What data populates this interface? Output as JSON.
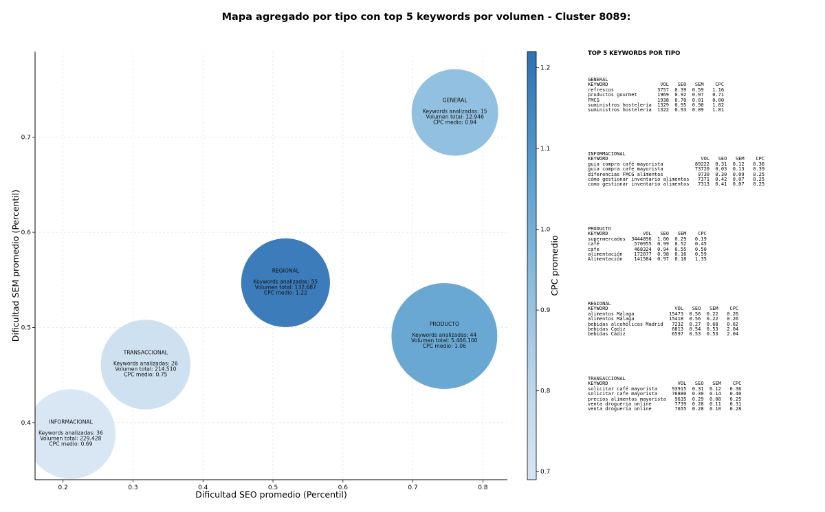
{
  "chart_data": {
    "type": "scatter",
    "title": "Mapa agregado por tipo con top 5 keywords por volumen - Cluster 8089:",
    "xlabel": "Dificultad SEO promedio (Percentil)",
    "ylabel": "Dificultad SEM promedio (Percentil)",
    "xlim": [
      0.16,
      0.835
    ],
    "ylim": [
      0.34,
      0.79
    ],
    "xticks": [
      0.2,
      0.3,
      0.4,
      0.5,
      0.6,
      0.7,
      0.8
    ],
    "yticks": [
      0.4,
      0.5,
      0.6,
      0.7
    ],
    "grid": true,
    "colorbar": {
      "label": "CPC promedio",
      "min": 0.69,
      "max": 1.22,
      "ticks": [
        0.7,
        0.8,
        0.9,
        1.0,
        1.1,
        1.2
      ],
      "colormap": "Blues",
      "color_low": "#d6e5f4",
      "color_high": "#2b71b4"
    },
    "points": [
      {
        "tipo": "GENERAL",
        "x": 0.76,
        "y": 0.726,
        "keywords": 15,
        "volumen_total": "12.946",
        "volumen": 12946,
        "cpc": 0.94,
        "line_kw": "Keywords analizadas: 15",
        "line_vol": "Volumen total: 12.946",
        "line_cpc": "CPC medio: 0.94"
      },
      {
        "tipo": "REGIONAL",
        "x": 0.518,
        "y": 0.547,
        "keywords": 55,
        "volumen_total": "132.687",
        "volumen": 132687,
        "cpc": 1.22,
        "line_kw": "Keywords analizadas: 55",
        "line_vol": "Volumen total: 132.687",
        "line_cpc": "CPC medio: 1.22"
      },
      {
        "tipo": "PRODUCTO",
        "x": 0.745,
        "y": 0.491,
        "keywords": 44,
        "volumen_total": "5.406.100",
        "volumen": 5406100,
        "cpc": 1.06,
        "line_kw": "Keywords analizadas: 44",
        "line_vol": "Volumen total: 5.406.100",
        "line_cpc": "CPC medio: 1.06"
      },
      {
        "tipo": "TRANSACCIONAL",
        "x": 0.318,
        "y": 0.461,
        "keywords": 26,
        "volumen_total": "214.510",
        "volumen": 214510,
        "cpc": 0.75,
        "line_kw": "Keywords analizadas: 26",
        "line_vol": "Volumen total: 214.510",
        "line_cpc": "CPC medio: 0.75"
      },
      {
        "tipo": "INFORMACIONAL",
        "x": 0.211,
        "y": 0.388,
        "keywords": 36,
        "volumen_total": "229.428",
        "volumen": 229428,
        "cpc": 0.69,
        "line_kw": "Keywords analizadas: 36",
        "line_vol": "Volumen total: 229.428",
        "line_cpc": "CPC medio: 0.69"
      }
    ]
  },
  "panel": {
    "title": "TOP 5 KEYWORDS POR TIPO",
    "header_label": "KEYWORD",
    "col_vol": "VOL",
    "col_seo": "SEO",
    "col_sem": "SEM",
    "col_cpc": "CPC",
    "groups": [
      {
        "tipo": "GENERAL",
        "rows": [
          {
            "kw": "refrescos",
            "vol": "3757",
            "seo": "0.39",
            "sem": "0.59",
            "cpc": "1.16"
          },
          {
            "kw": "productos gourmet",
            "vol": "1969",
            "seo": "0.92",
            "sem": "0.97",
            "cpc": "0.71"
          },
          {
            "kw": "FMCG",
            "vol": "1938",
            "seo": "0.70",
            "sem": "0.01",
            "cpc": "0.00"
          },
          {
            "kw": "suministros hosteleria",
            "vol": "1329",
            "seo": "0.95",
            "sem": "0.90",
            "cpc": "1.82"
          },
          {
            "kw": "suministros hosteleria",
            "vol": "1322",
            "seo": "0.93",
            "sem": "0.89",
            "cpc": "1.81"
          }
        ]
      },
      {
        "tipo": "INFORMACIONAL",
        "rows": [
          {
            "kw": "guia compra café mayorista",
            "vol": "89222",
            "seo": "0.31",
            "sem": "0.12",
            "cpc": "0.36"
          },
          {
            "kw": "guia compra cafe mayorista",
            "vol": "73720",
            "seo": "0.03",
            "sem": "0.13",
            "cpc": "0.39"
          },
          {
            "kw": "diferencias FMCG alimentos",
            "vol": "9730",
            "seo": "0.30",
            "sem": "0.09",
            "cpc": "0.25"
          },
          {
            "kw": "cómo gestionar inventario alimentos",
            "vol": "7371",
            "seo": "0.42",
            "sem": "0.07",
            "cpc": "0.25"
          },
          {
            "kw": "como gestionar inventario alimentos",
            "vol": "7313",
            "seo": "0.41",
            "sem": "0.07",
            "cpc": "0.25"
          }
        ]
      },
      {
        "tipo": "PRODUCTO",
        "rows": [
          {
            "kw": "supermercados",
            "vol": "3444896",
            "seo": "1.00",
            "sem": "0.29",
            "cpc": "0.19"
          },
          {
            "kw": "café",
            "vol": "570955",
            "seo": "0.99",
            "sem": "0.52",
            "cpc": "0.45"
          },
          {
            "kw": "cafe",
            "vol": "468324",
            "seo": "0.94",
            "sem": "0.55",
            "cpc": "0.50"
          },
          {
            "kw": "alimentación",
            "vol": "172077",
            "seo": "0.98",
            "sem": "0.16",
            "cpc": "0.59"
          },
          {
            "kw": "Alimentación",
            "vol": "141584",
            "seo": "0.97",
            "sem": "0.18",
            "cpc": "1.35"
          }
        ]
      },
      {
        "tipo": "REGIONAL",
        "rows": [
          {
            "kw": "alimentos Malaga",
            "vol": "15473",
            "seo": "0.56",
            "sem": "0.22",
            "cpc": "0.26"
          },
          {
            "kw": "alimentos Málaga",
            "vol": "15418",
            "seo": "0.56",
            "sem": "0.22",
            "cpc": "0.26"
          },
          {
            "kw": "bebidas alcohólicas Madrid",
            "vol": "7232",
            "seo": "0.27",
            "sem": "0.68",
            "cpc": "0.62"
          },
          {
            "kw": "bebidas Cadiz",
            "vol": "6813",
            "seo": "0.54",
            "sem": "0.53",
            "cpc": "2.04"
          },
          {
            "kw": "bebidas Cádiz",
            "vol": "6597",
            "seo": "0.53",
            "sem": "0.53",
            "cpc": "2.04"
          }
        ]
      },
      {
        "tipo": "TRANSACCIONAL",
        "rows": [
          {
            "kw": "solicitar café mayorista",
            "vol": "93915",
            "seo": "0.31",
            "sem": "0.12",
            "cpc": "0.36"
          },
          {
            "kw": "solicitar cafe mayorista",
            "vol": "76880",
            "seo": "0.30",
            "sem": "0.14",
            "cpc": "0.40"
          },
          {
            "kw": "precios alimentos mayorista",
            "vol": "9635",
            "seo": "0.29",
            "sem": "0.08",
            "cpc": "0.25"
          },
          {
            "kw": "venta drogueria online",
            "vol": "7739",
            "seo": "0.28",
            "sem": "0.11",
            "cpc": "0.31"
          },
          {
            "kw": "venta droguería online",
            "vol": "7655",
            "seo": "0.28",
            "sem": "0.10",
            "cpc": "0.28"
          }
        ]
      }
    ]
  }
}
